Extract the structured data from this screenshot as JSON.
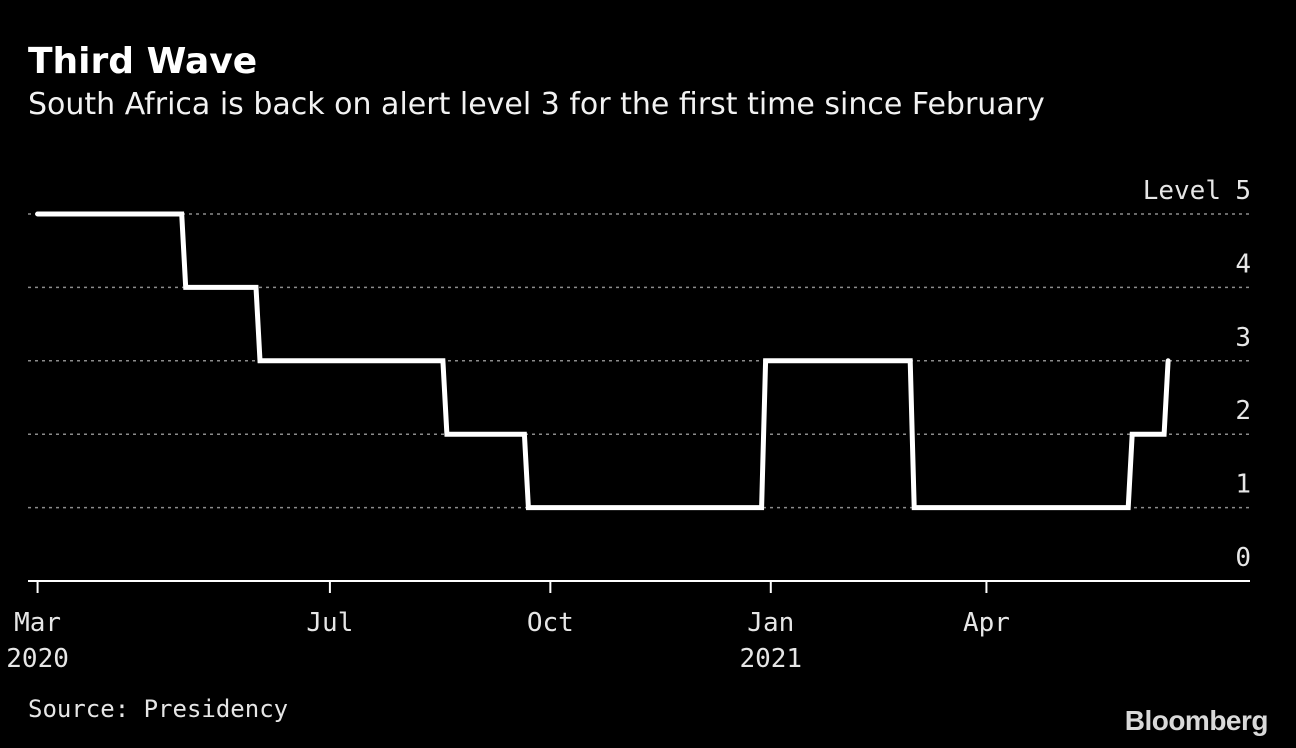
{
  "header": {
    "title": "Third Wave",
    "subtitle": "South Africa is back on alert level 3 for the first time since February"
  },
  "footer": {
    "source": "Source: Presidency",
    "brand": "Bloomberg"
  },
  "colors": {
    "background": "#000000",
    "line": "#ffffff",
    "grid": "#8c8c8c",
    "text": "#e6e6e6"
  },
  "chart_data": {
    "type": "line",
    "step": true,
    "title": "Third Wave",
    "subtitle": "South Africa is back on alert level 3 for the first time since February",
    "ylabel": "Level",
    "ylabel_position": "inline-with-top-tick",
    "ylim": [
      0,
      5
    ],
    "yticks": [
      0,
      1,
      2,
      3,
      4,
      5
    ],
    "y_axis_side": "right",
    "grid": "horizontal-dotted",
    "xlim": [
      "2020-02-26",
      "2021-07-20"
    ],
    "xticks": [
      {
        "date": "2020-03-01",
        "label": "Mar",
        "sublabel": "2020"
      },
      {
        "date": "2020-07-01",
        "label": "Jul",
        "sublabel": ""
      },
      {
        "date": "2020-10-01",
        "label": "Oct",
        "sublabel": ""
      },
      {
        "date": "2021-01-01",
        "label": "Jan",
        "sublabel": "2021"
      },
      {
        "date": "2021-04-01",
        "label": "Apr",
        "sublabel": ""
      }
    ],
    "series": [
      {
        "x": [
          "2020-03-01",
          "2020-05-01",
          "2020-06-01",
          "2020-08-18",
          "2020-09-21",
          "2020-12-29",
          "2021-03-01",
          "2021-05-31",
          "2021-06-15"
        ],
        "y": [
          5,
          4,
          3,
          2,
          1,
          3,
          1,
          2,
          3
        ]
      }
    ],
    "legend": "none",
    "source": "Source: Presidency"
  }
}
